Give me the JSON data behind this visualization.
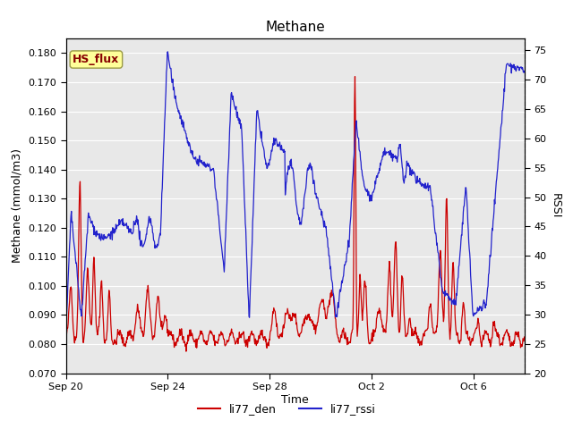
{
  "title": "Methane",
  "xlabel": "Time",
  "ylabel_left": "Methane (mmol/m3)",
  "ylabel_right": "RSSI",
  "ylim_left": [
    0.07,
    0.185
  ],
  "ylim_right": [
    20,
    77
  ],
  "yticks_left": [
    0.07,
    0.08,
    0.09,
    0.1,
    0.11,
    0.12,
    0.13,
    0.14,
    0.15,
    0.16,
    0.17,
    0.18
  ],
  "yticks_right": [
    20,
    25,
    30,
    35,
    40,
    45,
    50,
    55,
    60,
    65,
    70,
    75
  ],
  "xtick_labels": [
    "Sep 20",
    "Sep 24",
    "Sep 28",
    "Oct 2",
    "Oct 6"
  ],
  "xtick_positions": [
    0,
    4,
    8,
    12,
    16
  ],
  "xlim": [
    0,
    18
  ],
  "color_red": "#cc0000",
  "color_blue": "#2222cc",
  "legend_entries": [
    "li77_den",
    "li77_rssi"
  ],
  "fig_bg_color": "#ffffff",
  "plot_bg_color": "#e8e8e8",
  "grid_color": "#ffffff",
  "annotation_text": "HS_flux",
  "annotation_bg": "#ffff99",
  "annotation_border": "#999944",
  "title_fontsize": 11,
  "label_fontsize": 9,
  "tick_fontsize": 8,
  "legend_fontsize": 9,
  "linewidth": 0.9
}
